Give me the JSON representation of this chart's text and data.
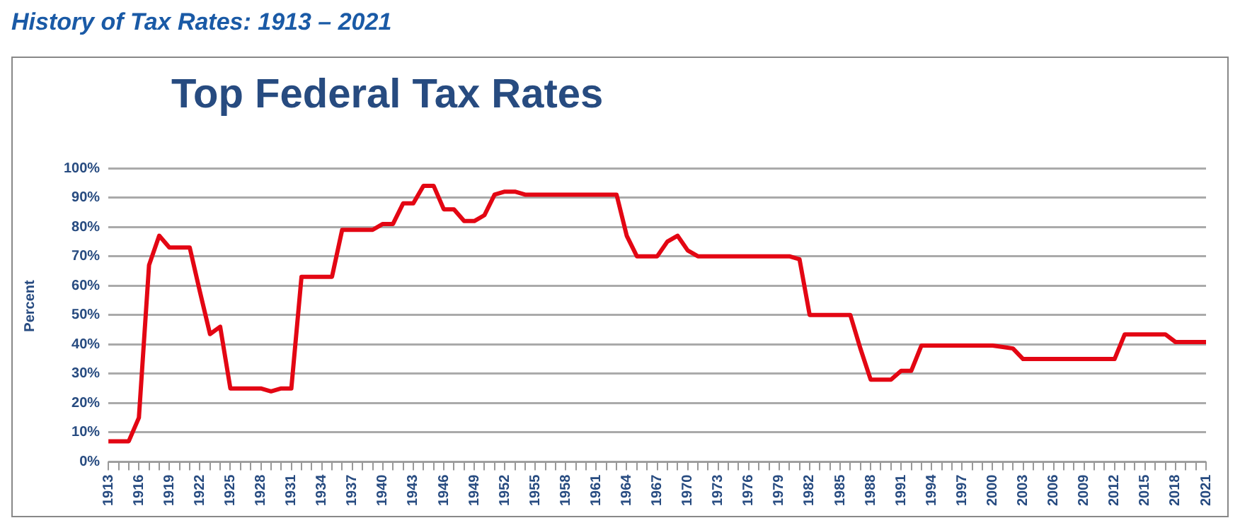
{
  "chart_data": {
    "type": "line",
    "title": "History of Tax Rates: 1913 – 2021",
    "subtitle": "Top Federal Tax Rates",
    "ylabel": "Percent",
    "categories": [
      "1913",
      null,
      null,
      "1916",
      null,
      null,
      "1919",
      null,
      null,
      "1922",
      null,
      null,
      "1925",
      null,
      null,
      "1928",
      null,
      null,
      "1931",
      null,
      null,
      "1934",
      null,
      null,
      "1937",
      null,
      null,
      "1940",
      null,
      null,
      "1943",
      null,
      null,
      "1946",
      null,
      null,
      "1949",
      null,
      null,
      "1952",
      null,
      null,
      "1955",
      null,
      null,
      "1958",
      null,
      null,
      "1961",
      null,
      null,
      "1964",
      null,
      null,
      "1967",
      null,
      null,
      "1970",
      null,
      null,
      "1973",
      null,
      null,
      "1976",
      null,
      null,
      "1979",
      null,
      null,
      "1982",
      null,
      null,
      "1985",
      null,
      null,
      "1988",
      null,
      null,
      "1991",
      null,
      null,
      "1994",
      null,
      null,
      "1997",
      null,
      null,
      "2000",
      null,
      null,
      "2003",
      null,
      null,
      "2006",
      null,
      null,
      "2009",
      null,
      null,
      "2012",
      null,
      null,
      "2015",
      null,
      null,
      "2018",
      null,
      null,
      "2021"
    ],
    "series": [
      {
        "color": "#e30613",
        "values": [
          7,
          7,
          7,
          15,
          67,
          77,
          73,
          73,
          73,
          58,
          43.5,
          46,
          25,
          25,
          25,
          25,
          24,
          25,
          25,
          63,
          63,
          63,
          63,
          79,
          79,
          79,
          79,
          81,
          81,
          88,
          88,
          94,
          94,
          86,
          86,
          82,
          82,
          84,
          91,
          92,
          92,
          91,
          91,
          91,
          91,
          91,
          91,
          91,
          91,
          91,
          91,
          77,
          70,
          70,
          70,
          75,
          77,
          72,
          70,
          70,
          70,
          70,
          70,
          70,
          70,
          70,
          70,
          70,
          69,
          50,
          50,
          50,
          50,
          50,
          38.5,
          28,
          28,
          28,
          31,
          31,
          39.6,
          39.6,
          39.6,
          39.6,
          39.6,
          39.6,
          39.6,
          39.6,
          39.1,
          38.6,
          35,
          35,
          35,
          35,
          35,
          35,
          35,
          35,
          35,
          35,
          43.4,
          43.4,
          43.4,
          43.4,
          43.4,
          40.8,
          40.8,
          40.8,
          40.8
        ]
      }
    ],
    "ylim": [
      0,
      100
    ],
    "yticks": [
      {
        "value": 0,
        "label": "0%"
      },
      {
        "value": 10,
        "label": "10%"
      },
      {
        "value": 20,
        "label": "20%"
      },
      {
        "value": 30,
        "label": "30%"
      },
      {
        "value": 40,
        "label": "40%"
      },
      {
        "value": 50,
        "label": "50%"
      },
      {
        "value": 60,
        "label": "60%"
      },
      {
        "value": 70,
        "label": "70%"
      },
      {
        "value": 80,
        "label": "80%"
      },
      {
        "value": 90,
        "label": "90%"
      },
      {
        "value": 100,
        "label": "100%"
      }
    ],
    "grid": "y",
    "legend": false,
    "marker": "none",
    "line_style": "solid"
  }
}
